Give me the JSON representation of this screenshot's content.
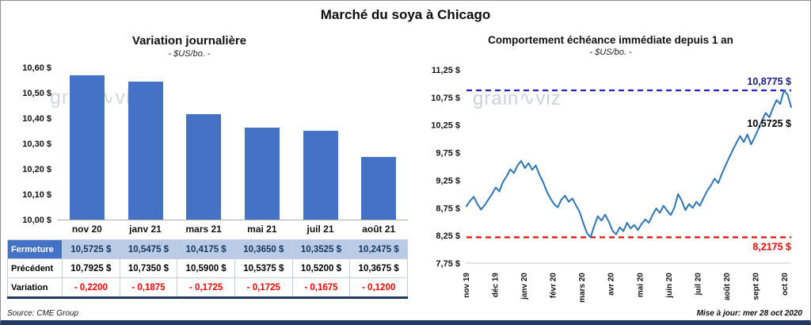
{
  "title": "Marché du soya à Chicago",
  "watermark": "grain∿viz",
  "footer": {
    "source": "Source: CME Group",
    "updated": "Mise à jour: mer 28 oct 2020"
  },
  "colors": {
    "bar": "#4472C4",
    "line": "#2E75B6",
    "high_line": "#2222CC",
    "high_label": "#1A1A8C",
    "low_line": "#FF0000",
    "low_label": "#FF0000",
    "last_label": "#000000",
    "table_header_bg": "#4472C4",
    "table_highlight_bg": "#B9CBE6",
    "table_highlight_text": "#17375E",
    "variation_text": "#FF0000",
    "navy": "#203864"
  },
  "chart_data": [
    {
      "type": "bar",
      "title": "Variation journalière",
      "subtitle": "- $US/bo. -",
      "categories": [
        "nov 20",
        "janv 21",
        "mars 21",
        "mai 21",
        "juil 21",
        "août 21"
      ],
      "values": [
        10.5725,
        10.5475,
        10.4175,
        10.365,
        10.3525,
        10.2475
      ],
      "ylabel_ticks": [
        "10,60 $",
        "10,50 $",
        "10,40 $",
        "10,30 $",
        "10,20 $",
        "10,10 $",
        "10,00 $"
      ],
      "ylim": [
        10.0,
        10.6
      ],
      "grid": false,
      "legend": "none"
    },
    {
      "type": "line",
      "title": "Comportement échéance immédiate depuis 1 an",
      "subtitle": "- $US/bo. -",
      "x_labels": [
        "nov 19",
        "déc 19",
        "janv 20",
        "févr 20",
        "mars 20",
        "avr 20",
        "mai 20",
        "juin 20",
        "juil 20",
        "août 20",
        "sept 20",
        "oct 20"
      ],
      "ylabel_ticks": [
        "11,25 $",
        "10,75 $",
        "10,25 $",
        "9,75 $",
        "9,25 $",
        "8,75 $",
        "8,25 $",
        "7,75 $"
      ],
      "ylim": [
        7.75,
        11.25
      ],
      "grid": false,
      "legend": "none",
      "annotations": {
        "high": {
          "value": 10.8775,
          "label": "10,8775 $"
        },
        "last": {
          "value": 10.5725,
          "label": "10,5725 $"
        },
        "low": {
          "value": 8.2175,
          "label": "8,2175 $"
        }
      },
      "values": [
        8.78,
        8.88,
        8.95,
        8.82,
        8.72,
        8.8,
        8.9,
        9.0,
        9.12,
        9.05,
        9.22,
        9.32,
        9.45,
        9.38,
        9.52,
        9.6,
        9.47,
        9.56,
        9.44,
        9.52,
        9.35,
        9.22,
        9.05,
        8.92,
        8.82,
        8.76,
        8.9,
        8.97,
        8.86,
        8.92,
        8.8,
        8.68,
        8.48,
        8.3,
        8.2175,
        8.42,
        8.6,
        8.52,
        8.63,
        8.5,
        8.34,
        8.27,
        8.4,
        8.33,
        8.48,
        8.38,
        8.44,
        8.35,
        8.46,
        8.54,
        8.48,
        8.62,
        8.74,
        8.66,
        8.79,
        8.7,
        8.62,
        8.76,
        9.0,
        8.88,
        8.71,
        8.82,
        8.75,
        8.86,
        8.79,
        8.93,
        9.06,
        9.16,
        9.28,
        9.2,
        9.37,
        9.52,
        9.66,
        9.8,
        9.93,
        10.05,
        9.94,
        10.08,
        9.9,
        10.03,
        10.18,
        10.33,
        10.47,
        10.39,
        10.56,
        10.7,
        10.63,
        10.8775,
        10.8,
        10.5725
      ]
    }
  ],
  "table": {
    "rows": [
      {
        "label": "Fermeture",
        "style": "highlight",
        "values": [
          "10,5725  $",
          "10,5475  $",
          "10,4175  $",
          "10,3650  $",
          "10,3525  $",
          "10,2475  $"
        ]
      },
      {
        "label": "Précédent",
        "style": "normal",
        "values": [
          "10,7925  $",
          "10,7350  $",
          "10,5900  $",
          "10,5375  $",
          "10,5200  $",
          "10,3675  $"
        ]
      },
      {
        "label": "Variation",
        "style": "variation",
        "values": [
          "- 0,2200",
          "- 0,1875",
          "- 0,1725",
          "- 0,1725",
          "- 0,1675",
          "- 0,1200"
        ]
      }
    ]
  }
}
